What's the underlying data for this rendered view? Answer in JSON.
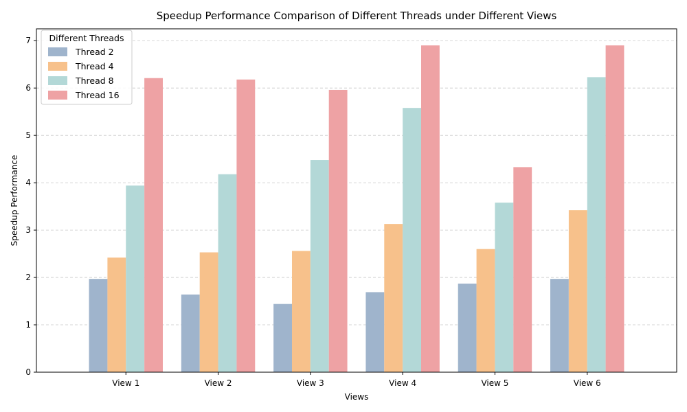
{
  "chart_data": {
    "type": "bar",
    "title": "Speedup Performance Comparison of Different Threads under Different Views",
    "xlabel": "Views",
    "ylabel": "Speedup Performance",
    "ylim": [
      0,
      7.25
    ],
    "yticks": [
      0,
      1,
      2,
      3,
      4,
      5,
      6,
      7
    ],
    "grid": "horizontal-dashed",
    "categories": [
      "View 1",
      "View 2",
      "View 3",
      "View 4",
      "View 5",
      "View 6"
    ],
    "legend": {
      "title": "Different Threads",
      "placement": "top-left"
    },
    "series": [
      {
        "name": "Thread 2",
        "color": "#9fb4cc",
        "values": [
          1.97,
          1.64,
          1.44,
          1.69,
          1.87,
          1.97
        ]
      },
      {
        "name": "Thread 4",
        "color": "#f7c18b",
        "values": [
          2.42,
          2.53,
          2.56,
          3.13,
          2.6,
          3.42
        ]
      },
      {
        "name": "Thread 8",
        "color": "#b3d8d7",
        "values": [
          3.94,
          4.18,
          4.48,
          5.58,
          3.58,
          6.23
        ]
      },
      {
        "name": "Thread 16",
        "color": "#eea2a4",
        "values": [
          6.21,
          6.18,
          5.96,
          6.9,
          4.33,
          6.9
        ]
      }
    ]
  }
}
